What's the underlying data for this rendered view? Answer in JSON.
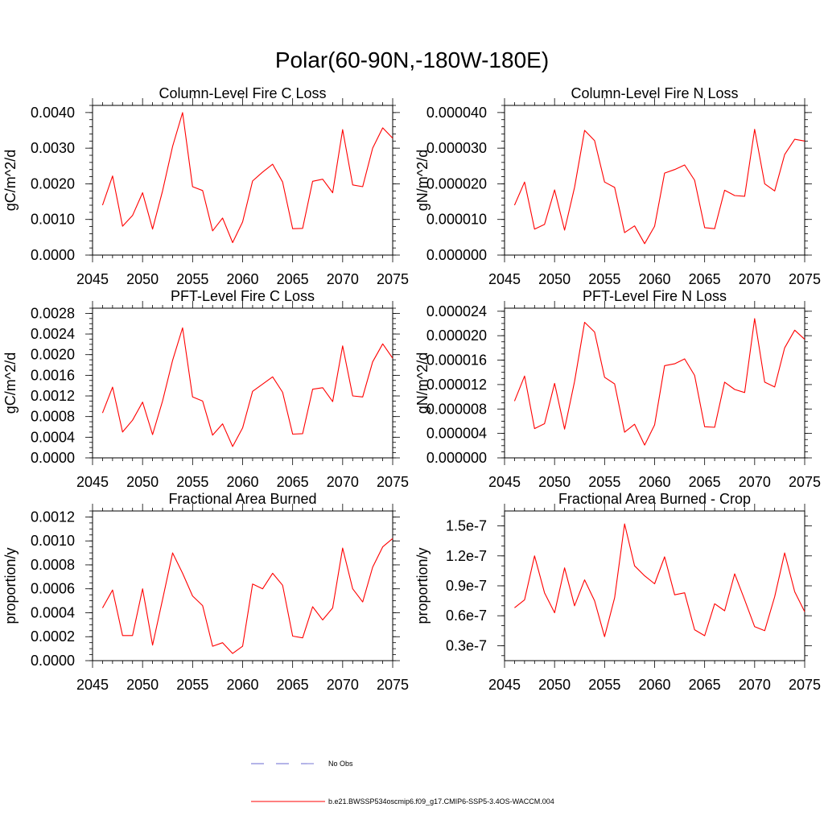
{
  "figure_title": "Polar(60-90N,-180W-180E)",
  "legend": {
    "items": [
      {
        "label": "No Obs",
        "style": "dashed",
        "color": "#6a6ad0"
      },
      {
        "label": "b.e21.BWSSP534oscmip6.f09_g17.CMIP6-SSP5-3.4OS-WACCM.004",
        "style": "solid",
        "color": "#ff0000"
      }
    ]
  },
  "series_color": "#ff0000",
  "chart_data": [
    {
      "type": "line",
      "title": "Column-Level Fire C Loss",
      "xlabel": "",
      "ylabel": "gC/m^2/d",
      "xlim": [
        2045,
        2075
      ],
      "ylim": [
        0,
        0.0042
      ],
      "x_ticks": [
        2045,
        2050,
        2055,
        2060,
        2065,
        2070,
        2075
      ],
      "x_tick_labels": [
        "2045",
        "2050",
        "2055",
        "2060",
        "2065",
        "2070",
        "2075"
      ],
      "y_ticks": [
        0,
        0.001,
        0.002,
        0.003,
        0.004
      ],
      "y_tick_labels": [
        "0.0000",
        "0.0010",
        "0.0020",
        "0.0030",
        "0.0040"
      ],
      "y_minor_step": 0.0002,
      "x": [
        2046,
        2047,
        2048,
        2049,
        2050,
        2051,
        2052,
        2053,
        2054,
        2055,
        2056,
        2057,
        2058,
        2059,
        2060,
        2061,
        2062,
        2063,
        2064,
        2065,
        2066,
        2067,
        2068,
        2069,
        2070,
        2071,
        2072,
        2073,
        2074,
        2075
      ],
      "series": [
        {
          "name": "b.e21.BWSSP534oscmip6.f09_g17.CMIP6-SSP5-3.4OS-WACCM.004",
          "values": [
            0.0014,
            0.00222,
            0.00081,
            0.00111,
            0.00175,
            0.00073,
            0.0018,
            0.00305,
            0.004,
            0.00192,
            0.00181,
            0.00068,
            0.00104,
            0.00035,
            0.00093,
            0.00208,
            0.00233,
            0.00255,
            0.00205,
            0.00074,
            0.00075,
            0.00207,
            0.00213,
            0.00175,
            0.00352,
            0.00197,
            0.00192,
            0.003,
            0.00357,
            0.00328
          ]
        }
      ]
    },
    {
      "type": "line",
      "title": "Column-Level Fire N Loss",
      "xlabel": "",
      "ylabel": "gN/m^2/d",
      "xlim": [
        2045,
        2075
      ],
      "ylim": [
        0,
        4.2e-05
      ],
      "x_ticks": [
        2045,
        2050,
        2055,
        2060,
        2065,
        2070,
        2075
      ],
      "x_tick_labels": [
        "2045",
        "2050",
        "2055",
        "2060",
        "2065",
        "2070",
        "2075"
      ],
      "y_ticks": [
        0,
        1e-05,
        2e-05,
        3e-05,
        4e-05
      ],
      "y_tick_labels": [
        "0.000000",
        "0.000010",
        "0.000020",
        "0.000030",
        "0.000040"
      ],
      "y_minor_step": 2e-06,
      "x": [
        2046,
        2047,
        2048,
        2049,
        2050,
        2051,
        2052,
        2053,
        2054,
        2055,
        2056,
        2057,
        2058,
        2059,
        2060,
        2061,
        2062,
        2063,
        2064,
        2065,
        2066,
        2067,
        2068,
        2069,
        2070,
        2071,
        2072,
        2073,
        2074,
        2075
      ],
      "series": [
        {
          "name": "b.e21.BWSSP534oscmip6.f09_g17.CMIP6-SSP5-3.4OS-WACCM.004",
          "values": [
            1.4e-05,
            2.05e-05,
            7.3e-06,
            8.6e-06,
            1.83e-05,
            7e-06,
            1.9e-05,
            3.5e-05,
            3.21e-05,
            2.05e-05,
            1.9e-05,
            6.3e-06,
            8.2e-06,
            3.2e-06,
            8.1e-06,
            2.3e-05,
            2.4e-05,
            2.53e-05,
            2.1e-05,
            7.7e-06,
            7.4e-06,
            1.82e-05,
            1.67e-05,
            1.65e-05,
            3.53e-05,
            2e-05,
            1.8e-05,
            2.82e-05,
            3.25e-05,
            3.2e-05
          ]
        }
      ]
    },
    {
      "type": "line",
      "title": "PFT-Level Fire C Loss",
      "xlabel": "",
      "ylabel": "gC/m^2/d",
      "xlim": [
        2045,
        2075
      ],
      "ylim": [
        0,
        0.0029
      ],
      "x_ticks": [
        2045,
        2050,
        2055,
        2060,
        2065,
        2070,
        2075
      ],
      "x_tick_labels": [
        "2045",
        "2050",
        "2055",
        "2060",
        "2065",
        "2070",
        "2075"
      ],
      "y_ticks": [
        0,
        0.0004,
        0.0008,
        0.0012,
        0.0016,
        0.002,
        0.0024,
        0.0028
      ],
      "y_tick_labels": [
        "0.0000",
        "0.0004",
        "0.0008",
        "0.0012",
        "0.0016",
        "0.0020",
        "0.0024",
        "0.0028"
      ],
      "y_minor_step": 0.0001,
      "x": [
        2046,
        2047,
        2048,
        2049,
        2050,
        2051,
        2052,
        2053,
        2054,
        2055,
        2056,
        2057,
        2058,
        2059,
        2060,
        2061,
        2062,
        2063,
        2064,
        2065,
        2066,
        2067,
        2068,
        2069,
        2070,
        2071,
        2072,
        2073,
        2074,
        2075
      ],
      "series": [
        {
          "name": "b.e21.BWSSP534oscmip6.f09_g17.CMIP6-SSP5-3.4OS-WACCM.004",
          "values": [
            0.00087,
            0.00137,
            0.0005,
            0.00073,
            0.00108,
            0.00045,
            0.0011,
            0.00189,
            0.00252,
            0.00118,
            0.0011,
            0.00044,
            0.00066,
            0.00022,
            0.00058,
            0.00129,
            0.00143,
            0.00157,
            0.00127,
            0.00046,
            0.00047,
            0.00133,
            0.00136,
            0.00109,
            0.00217,
            0.0012,
            0.00118,
            0.00186,
            0.00221,
            0.00193
          ]
        }
      ]
    },
    {
      "type": "line",
      "title": "PFT-Level Fire N Loss",
      "xlabel": "",
      "ylabel": "gN/m^2/d",
      "xlim": [
        2045,
        2075
      ],
      "ylim": [
        0,
        2.45e-05
      ],
      "x_ticks": [
        2045,
        2050,
        2055,
        2060,
        2065,
        2070,
        2075
      ],
      "x_tick_labels": [
        "2045",
        "2050",
        "2055",
        "2060",
        "2065",
        "2070",
        "2075"
      ],
      "y_ticks": [
        0,
        4e-06,
        8e-06,
        1.2e-05,
        1.6e-05,
        2e-05,
        2.4e-05
      ],
      "y_tick_labels": [
        "0.000000",
        "0.000004",
        "0.000008",
        "0.000012",
        "0.000016",
        "0.000020",
        "0.000024"
      ],
      "y_minor_step": 1e-06,
      "x": [
        2046,
        2047,
        2048,
        2049,
        2050,
        2051,
        2052,
        2053,
        2054,
        2055,
        2056,
        2057,
        2058,
        2059,
        2060,
        2061,
        2062,
        2063,
        2064,
        2065,
        2066,
        2067,
        2068,
        2069,
        2070,
        2071,
        2072,
        2073,
        2074,
        2075
      ],
      "series": [
        {
          "name": "b.e21.BWSSP534oscmip6.f09_g17.CMIP6-SSP5-3.4OS-WACCM.004",
          "values": [
            9.3e-06,
            1.34e-05,
            4.8e-06,
            5.6e-06,
            1.22e-05,
            4.7e-06,
            1.25e-05,
            2.22e-05,
            2.06e-05,
            1.32e-05,
            1.21e-05,
            4.2e-06,
            5.5e-06,
            2.1e-06,
            5.4e-06,
            1.51e-05,
            1.54e-05,
            1.62e-05,
            1.35e-05,
            5.1e-06,
            5e-06,
            1.24e-05,
            1.12e-05,
            1.07e-05,
            2.28e-05,
            1.24e-05,
            1.16e-05,
            1.8e-05,
            2.09e-05,
            1.94e-05
          ]
        }
      ]
    },
    {
      "type": "line",
      "title": "Fractional Area Burned",
      "xlabel": "",
      "ylabel": "proportion/y",
      "xlim": [
        2045,
        2075
      ],
      "ylim": [
        0,
        0.00125
      ],
      "x_ticks": [
        2045,
        2050,
        2055,
        2060,
        2065,
        2070,
        2075
      ],
      "x_tick_labels": [
        "2045",
        "2050",
        "2055",
        "2060",
        "2065",
        "2070",
        "2075"
      ],
      "y_ticks": [
        0,
        0.0002,
        0.0004,
        0.0006,
        0.0008,
        0.001,
        0.0012
      ],
      "y_tick_labels": [
        "0.0000",
        "0.0002",
        "0.0004",
        "0.0006",
        "0.0008",
        "0.0010",
        "0.0012"
      ],
      "y_minor_step": 5e-05,
      "x": [
        2046,
        2047,
        2048,
        2049,
        2050,
        2051,
        2052,
        2053,
        2054,
        2055,
        2056,
        2057,
        2058,
        2059,
        2060,
        2061,
        2062,
        2063,
        2064,
        2065,
        2066,
        2067,
        2068,
        2069,
        2070,
        2071,
        2072,
        2073,
        2074,
        2075
      ],
      "series": [
        {
          "name": "b.e21.BWSSP534oscmip6.f09_g17.CMIP6-SSP5-3.4OS-WACCM.004",
          "values": [
            0.00044,
            0.00059,
            0.00021,
            0.00021,
            0.0006,
            0.00013,
            0.00051,
            0.0009,
            0.00073,
            0.00054,
            0.00046,
            0.00012,
            0.00015,
            6e-05,
            0.00012,
            0.00064,
            0.0006,
            0.00073,
            0.00063,
            0.000205,
            0.00019,
            0.00045,
            0.00034,
            0.00044,
            0.00094,
            0.0006,
            0.00049,
            0.00078,
            0.00095,
            0.00102
          ]
        }
      ]
    },
    {
      "type": "line",
      "title": "Fractional Area Burned - Crop",
      "xlabel": "",
      "ylabel": "proportion/y",
      "xlim": [
        2045,
        2075
      ],
      "ylim": [
        1.5e-08,
        1.65e-07
      ],
      "x_ticks": [
        2045,
        2050,
        2055,
        2060,
        2065,
        2070,
        2075
      ],
      "x_tick_labels": [
        "2045",
        "2050",
        "2055",
        "2060",
        "2065",
        "2070",
        "2075"
      ],
      "y_ticks": [
        3e-08,
        6e-08,
        9e-08,
        1.2e-07,
        1.5e-07
      ],
      "y_tick_labels": [
        "0.3e-7",
        "0.6e-7",
        "0.9e-7",
        "1.2e-7",
        "1.5e-7"
      ],
      "y_minor_step": 1e-08,
      "x": [
        2046,
        2047,
        2048,
        2049,
        2050,
        2051,
        2052,
        2053,
        2054,
        2055,
        2056,
        2057,
        2058,
        2059,
        2060,
        2061,
        2062,
        2063,
        2064,
        2065,
        2066,
        2067,
        2068,
        2069,
        2070,
        2071,
        2072,
        2073,
        2074,
        2075
      ],
      "series": [
        {
          "name": "b.e21.BWSSP534oscmip6.f09_g17.CMIP6-SSP5-3.4OS-WACCM.004",
          "values": [
            6.8e-08,
            7.6e-08,
            1.2e-07,
            8.3e-08,
            6.3e-08,
            1.08e-07,
            7e-08,
            9.6e-08,
            7.5e-08,
            3.9e-08,
            7.8e-08,
            1.52e-07,
            1.1e-07,
            1e-07,
            9.2e-08,
            1.19e-07,
            8.1e-08,
            8.3e-08,
            4.6e-08,
            4e-08,
            7.2e-08,
            6.5e-08,
            1.02e-07,
            7.6e-08,
            4.9e-08,
            4.5e-08,
            7.9e-08,
            1.23e-07,
            8.4e-08,
            6.4e-08
          ]
        }
      ]
    }
  ]
}
